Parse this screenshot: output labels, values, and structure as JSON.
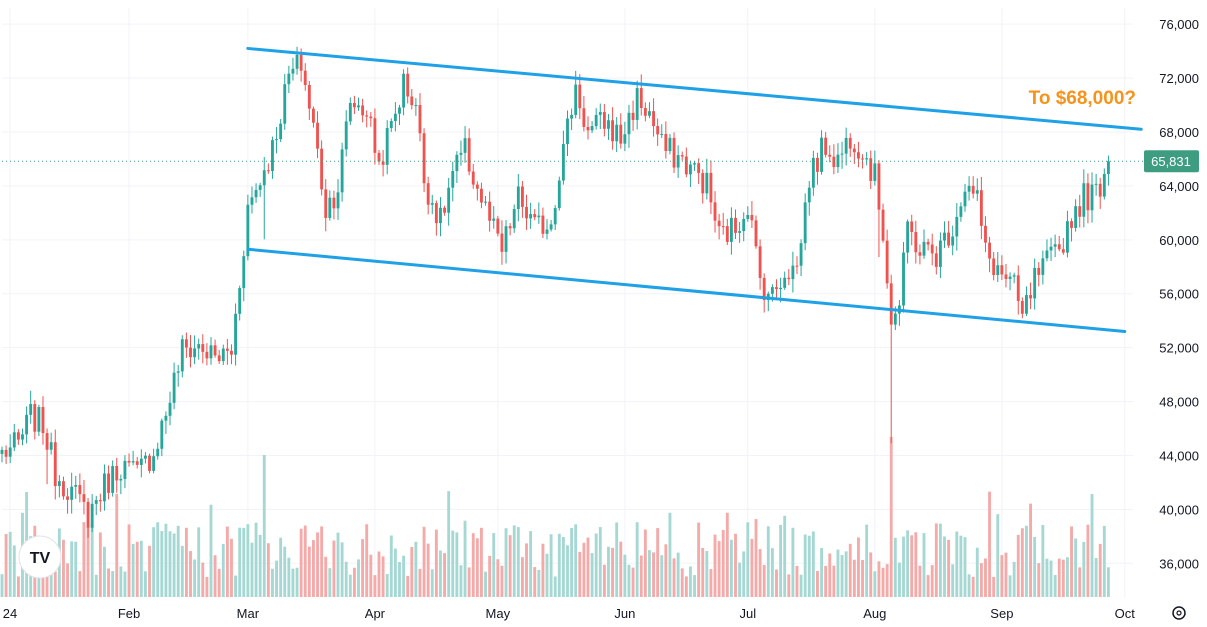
{
  "colors": {
    "up": "#26a69a",
    "down": "#ef5350",
    "up_volume": "#a6d8d3",
    "down_volume": "#f3aaa9",
    "channel": "#1ea1e6",
    "annotation": "#f7931a",
    "last_price": "#3e9d80",
    "grid": "#f0f3fa"
  },
  "logo": {
    "icon": "tradingview-logo-icon",
    "text": "TV"
  },
  "settings_icon": "gear-icon",
  "chart_data": {
    "type": "candlestick",
    "title": "",
    "y_axis": {
      "ticks": [
        "76,000",
        "72,000",
        "68,000",
        "64,000",
        "60,000",
        "56,000",
        "52,000",
        "48,000",
        "44,000",
        "40,000",
        "36,000"
      ],
      "ylim": [
        33500,
        77200
      ],
      "position": "right"
    },
    "x_axis": {
      "ticks": [
        "24",
        "Feb",
        "Mar",
        "Apr",
        "May",
        "Jun",
        "Jul",
        "Aug",
        "Sep",
        "Oct"
      ],
      "start": "2024-01-01",
      "end": "2024-10-03"
    },
    "last_price": {
      "label": "65,831",
      "value": 65831
    },
    "annotation": {
      "text": "To $68,000?"
    },
    "channel": {
      "upper": {
        "from": [
          "2024-03-01",
          74200
        ],
        "to": [
          "2024-10-05",
          68200
        ]
      },
      "lower": {
        "from": [
          "2024-03-01",
          59300
        ],
        "to": [
          "2024-10-01",
          53200
        ]
      }
    },
    "close_path": [
      [
        "2024-01-01",
        44200
      ],
      [
        "2024-01-05",
        44800
      ],
      [
        "2024-01-08",
        46900
      ],
      [
        "2024-01-11",
        46300
      ],
      [
        "2024-01-14",
        42700
      ],
      [
        "2024-01-18",
        41300
      ],
      [
        "2024-01-22",
        39600
      ],
      [
        "2024-01-26",
        41800
      ],
      [
        "2024-01-30",
        43300
      ],
      [
        "2024-02-03",
        42600
      ],
      [
        "2024-02-07",
        44300
      ],
      [
        "2024-02-10",
        47200
      ],
      [
        "2024-02-14",
        51800
      ],
      [
        "2024-02-18",
        52100
      ],
      [
        "2024-02-22",
        51200
      ],
      [
        "2024-02-26",
        51700
      ],
      [
        "2024-02-28",
        57000
      ],
      [
        "2024-03-01",
        62400
      ],
      [
        "2024-03-04",
        64500
      ],
      [
        "2024-03-07",
        66800
      ],
      [
        "2024-03-11",
        72100
      ],
      [
        "2024-03-14",
        73100
      ],
      [
        "2024-03-17",
        68400
      ],
      [
        "2024-03-20",
        62300
      ],
      [
        "2024-03-23",
        64000
      ],
      [
        "2024-03-26",
        70300
      ],
      [
        "2024-03-30",
        69600
      ],
      [
        "2024-04-02",
        65600
      ],
      [
        "2024-04-05",
        68400
      ],
      [
        "2024-04-08",
        71600
      ],
      [
        "2024-04-11",
        70100
      ],
      [
        "2024-04-13",
        64500
      ],
      [
        "2024-04-17",
        61300
      ],
      [
        "2024-04-20",
        64900
      ],
      [
        "2024-04-23",
        66500
      ],
      [
        "2024-04-26",
        63800
      ],
      [
        "2024-04-30",
        60600
      ],
      [
        "2024-05-02",
        59100
      ],
      [
        "2024-05-06",
        63100
      ],
      [
        "2024-05-10",
        60800
      ],
      [
        "2024-05-14",
        61500
      ],
      [
        "2024-05-16",
        65200
      ],
      [
        "2024-05-20",
        71400
      ],
      [
        "2024-05-23",
        67900
      ],
      [
        "2024-05-27",
        68800
      ],
      [
        "2024-05-31",
        67500
      ],
      [
        "2024-06-04",
        70500
      ],
      [
        "2024-06-07",
        69300
      ],
      [
        "2024-06-10",
        66900
      ],
      [
        "2024-06-14",
        66100
      ],
      [
        "2024-06-18",
        65100
      ],
      [
        "2024-06-21",
        64100
      ],
      [
        "2024-06-24",
        60300
      ],
      [
        "2024-06-28",
        60900
      ],
      [
        "2024-07-01",
        62800
      ],
      [
        "2024-07-04",
        57000
      ],
      [
        "2024-07-07",
        55800
      ],
      [
        "2024-07-10",
        57800
      ],
      [
        "2024-07-13",
        57900
      ],
      [
        "2024-07-16",
        64700
      ],
      [
        "2024-07-20",
        67100
      ],
      [
        "2024-07-23",
        65900
      ],
      [
        "2024-07-26",
        67800
      ],
      [
        "2024-07-29",
        66800
      ],
      [
        "2024-08-01",
        64600
      ],
      [
        "2024-08-03",
        60700
      ],
      [
        "2024-08-05",
        54100
      ],
      [
        "2024-08-07",
        55100
      ],
      [
        "2024-08-09",
        60900
      ],
      [
        "2024-08-12",
        59300
      ],
      [
        "2024-08-16",
        58900
      ],
      [
        "2024-08-20",
        61100
      ],
      [
        "2024-08-23",
        64100
      ],
      [
        "2024-08-26",
        62900
      ],
      [
        "2024-08-28",
        59000
      ],
      [
        "2024-09-01",
        57400
      ],
      [
        "2024-09-04",
        56300
      ],
      [
        "2024-09-06",
        54100
      ],
      [
        "2024-09-09",
        57000
      ],
      [
        "2024-09-12",
        58200
      ],
      [
        "2024-09-15",
        59200
      ],
      [
        "2024-09-18",
        61800
      ],
      [
        "2024-09-21",
        63200
      ],
      [
        "2024-09-24",
        63400
      ],
      [
        "2024-09-27",
        65831
      ]
    ],
    "volume_axis_max": 54000
  }
}
